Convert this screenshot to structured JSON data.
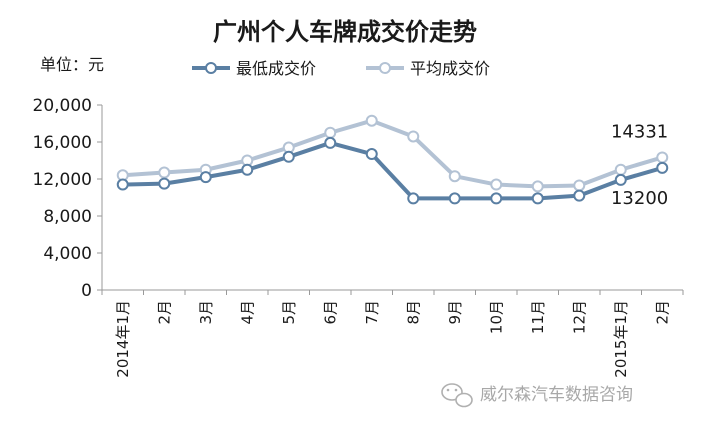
{
  "chart_data": {
    "type": "line",
    "title": "广州个人车牌成交价走势",
    "unit_label": "单位：元",
    "categories": [
      "2014年1月",
      "2月",
      "3月",
      "4月",
      "5月",
      "6月",
      "7月",
      "8月",
      "9月",
      "10月",
      "11月",
      "12月",
      "2015年1月",
      "2月"
    ],
    "series": [
      {
        "name": "最低成交价",
        "color": "#5a7fa3",
        "values": [
          11400,
          11500,
          12200,
          13000,
          14400,
          15900,
          14700,
          9900,
          9900,
          9900,
          9900,
          10200,
          11900,
          13200
        ]
      },
      {
        "name": "平均成交价",
        "color": "#b3c2d4",
        "values": [
          12400,
          12700,
          13000,
          14000,
          15400,
          17000,
          18300,
          16600,
          12300,
          11400,
          11200,
          11300,
          13000,
          14331
        ]
      }
    ],
    "yticks": [
      "0",
      "4,000",
      "8,000",
      "12,000",
      "16,000",
      "20,000"
    ],
    "ylim": [
      0,
      20000
    ],
    "grid": false,
    "legend_position": "top",
    "annotations": [
      {
        "series": 1,
        "index": 13,
        "text": "14331"
      },
      {
        "series": 0,
        "index": 13,
        "text": "13200"
      }
    ]
  },
  "watermark": {
    "text": "威尔森汽车数据咨询",
    "icon": "wechat-icon"
  }
}
